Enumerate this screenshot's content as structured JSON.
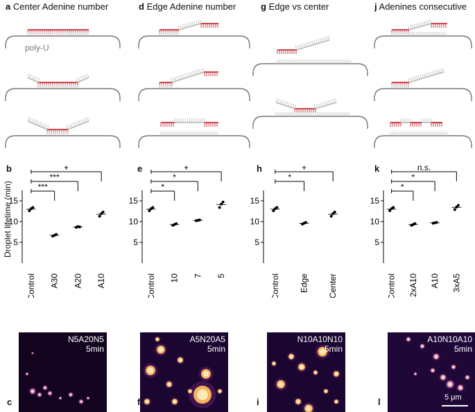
{
  "panels_top": {
    "a": {
      "letter": "a",
      "title": "Center Adenine number"
    },
    "d": {
      "letter": "d",
      "title": "Edge Adenine number"
    },
    "g": {
      "letter": "g",
      "title": "Edge vs center"
    },
    "j": {
      "letter": "j",
      "title": "Adenines consecutive"
    },
    "polyu_label": "poly-U"
  },
  "charts": {
    "ylabel": "Droplet lifetime (min)",
    "yticks": [
      "5",
      "10",
      "15"
    ],
    "b": {
      "letter": "b"
    },
    "e": {
      "letter": "e"
    },
    "h": {
      "letter": "h"
    },
    "k": {
      "letter": "k"
    }
  },
  "chart_data": [
    {
      "panel": "b",
      "type": "scatter",
      "categories": [
        "Control",
        "A30",
        "A20",
        "A10"
      ],
      "ylim": [
        0,
        17.5
      ],
      "means": [
        13.0,
        6.7,
        8.7,
        11.8
      ],
      "points": [
        [
          12.6,
          13.1,
          13.4
        ],
        [
          6.5,
          6.7,
          6.9
        ],
        [
          8.6,
          8.8,
          8.7
        ],
        [
          11.3,
          11.9,
          12.3
        ]
      ],
      "significance": [
        {
          "from": "Control",
          "to": "A30",
          "label": "***"
        },
        {
          "from": "Control",
          "to": "A20",
          "label": "***"
        },
        {
          "from": "Control",
          "to": "A10",
          "label": "+"
        }
      ]
    },
    {
      "panel": "e",
      "type": "scatter",
      "categories": [
        "Control",
        "10",
        "7",
        "5"
      ],
      "ylim": [
        0,
        17.5
      ],
      "means": [
        13.0,
        9.3,
        10.3,
        14.1
      ],
      "points": [
        [
          12.6,
          13.1,
          13.4
        ],
        [
          9.1,
          9.3,
          9.5
        ],
        [
          10.2,
          10.3,
          10.4
        ],
        [
          13.4,
          14.2,
          14.7
        ]
      ],
      "significance": [
        {
          "from": "Control",
          "to": "10",
          "label": "*"
        },
        {
          "from": "Control",
          "to": "7",
          "label": "*"
        },
        {
          "from": "Control",
          "to": "5",
          "label": "+"
        }
      ]
    },
    {
      "panel": "h",
      "type": "scatter",
      "categories": [
        "Control",
        "Edge",
        "Center"
      ],
      "ylim": [
        0,
        17.5
      ],
      "means": [
        13.0,
        9.6,
        11.8
      ],
      "points": [
        [
          12.6,
          13.1,
          13.4
        ],
        [
          9.4,
          9.6,
          9.8
        ],
        [
          11.3,
          11.9,
          12.3
        ]
      ],
      "significance": [
        {
          "from": "Control",
          "to": "Edge",
          "label": "*"
        },
        {
          "from": "Control",
          "to": "Center",
          "label": "+"
        }
      ]
    },
    {
      "panel": "k",
      "type": "scatter",
      "categories": [
        "Control",
        "2xA10",
        "A10",
        "3xA5"
      ],
      "ylim": [
        0,
        17.5
      ],
      "means": [
        13.0,
        9.3,
        9.7,
        13.4
      ],
      "points": [
        [
          12.6,
          13.1,
          13.4
        ],
        [
          9.1,
          9.3,
          9.5
        ],
        [
          9.6,
          9.7,
          9.8
        ],
        [
          12.9,
          13.5,
          13.9
        ]
      ],
      "significance": [
        {
          "from": "Control",
          "to": "2xA10",
          "label": "*"
        },
        {
          "from": "Control",
          "to": "A10",
          "label": "*"
        },
        {
          "from": "Control",
          "to": "3xA5",
          "label": "n.s."
        }
      ]
    }
  ],
  "micrographs": {
    "c": {
      "letter": "c",
      "seq": "N5A20N5",
      "time": "5min"
    },
    "f": {
      "letter": "f",
      "seq": "A5N20A5",
      "time": "5min"
    },
    "i": {
      "letter": "i",
      "seq": "N10A10N10",
      "time": "5min"
    },
    "l": {
      "letter": "l",
      "seq": "A10N10A10",
      "time": "5min",
      "scale": "5 μm"
    }
  },
  "colors": {
    "adenine": "#c0141e",
    "strand": "#b8b8b8",
    "polyu": "#777777",
    "bg_dark": "#1a0630",
    "glow": "#f5a641"
  }
}
